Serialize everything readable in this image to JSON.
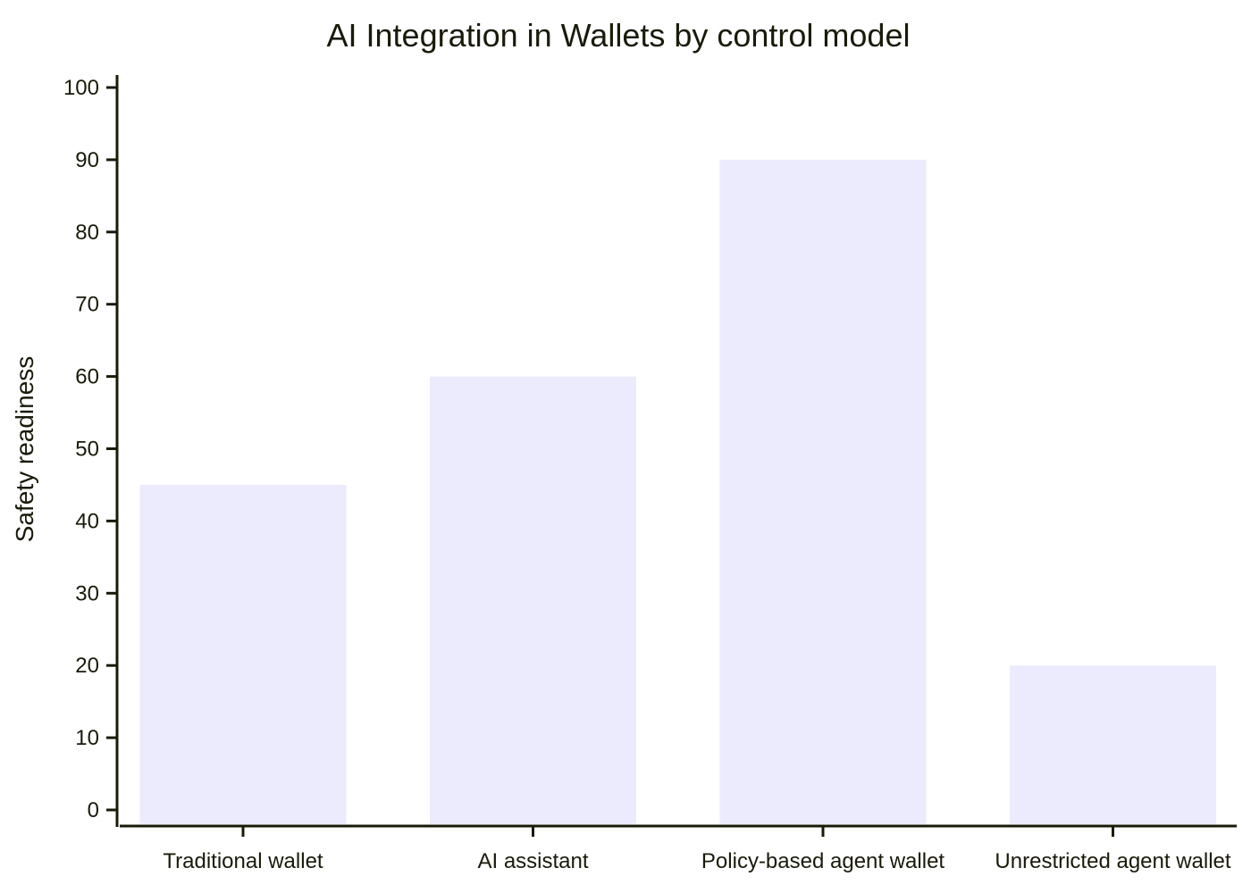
{
  "chart_data": {
    "type": "bar",
    "title": "AI Integration in Wallets by control model",
    "xlabel": "",
    "ylabel": "Safety readiness",
    "categories": [
      "Traditional wallet",
      "AI assistant",
      "Policy-based agent wallet",
      "Unrestricted agent wallet"
    ],
    "values": [
      45,
      60,
      90,
      20
    ],
    "ylim": [
      0,
      100
    ],
    "yticks": [
      0,
      10,
      20,
      30,
      40,
      50,
      60,
      70,
      80,
      90,
      100
    ],
    "grid": false,
    "legend": "none",
    "colors": {
      "bar": "#ecebfd",
      "axis": "#1a1a0a",
      "text": "#1a1a0a"
    }
  }
}
